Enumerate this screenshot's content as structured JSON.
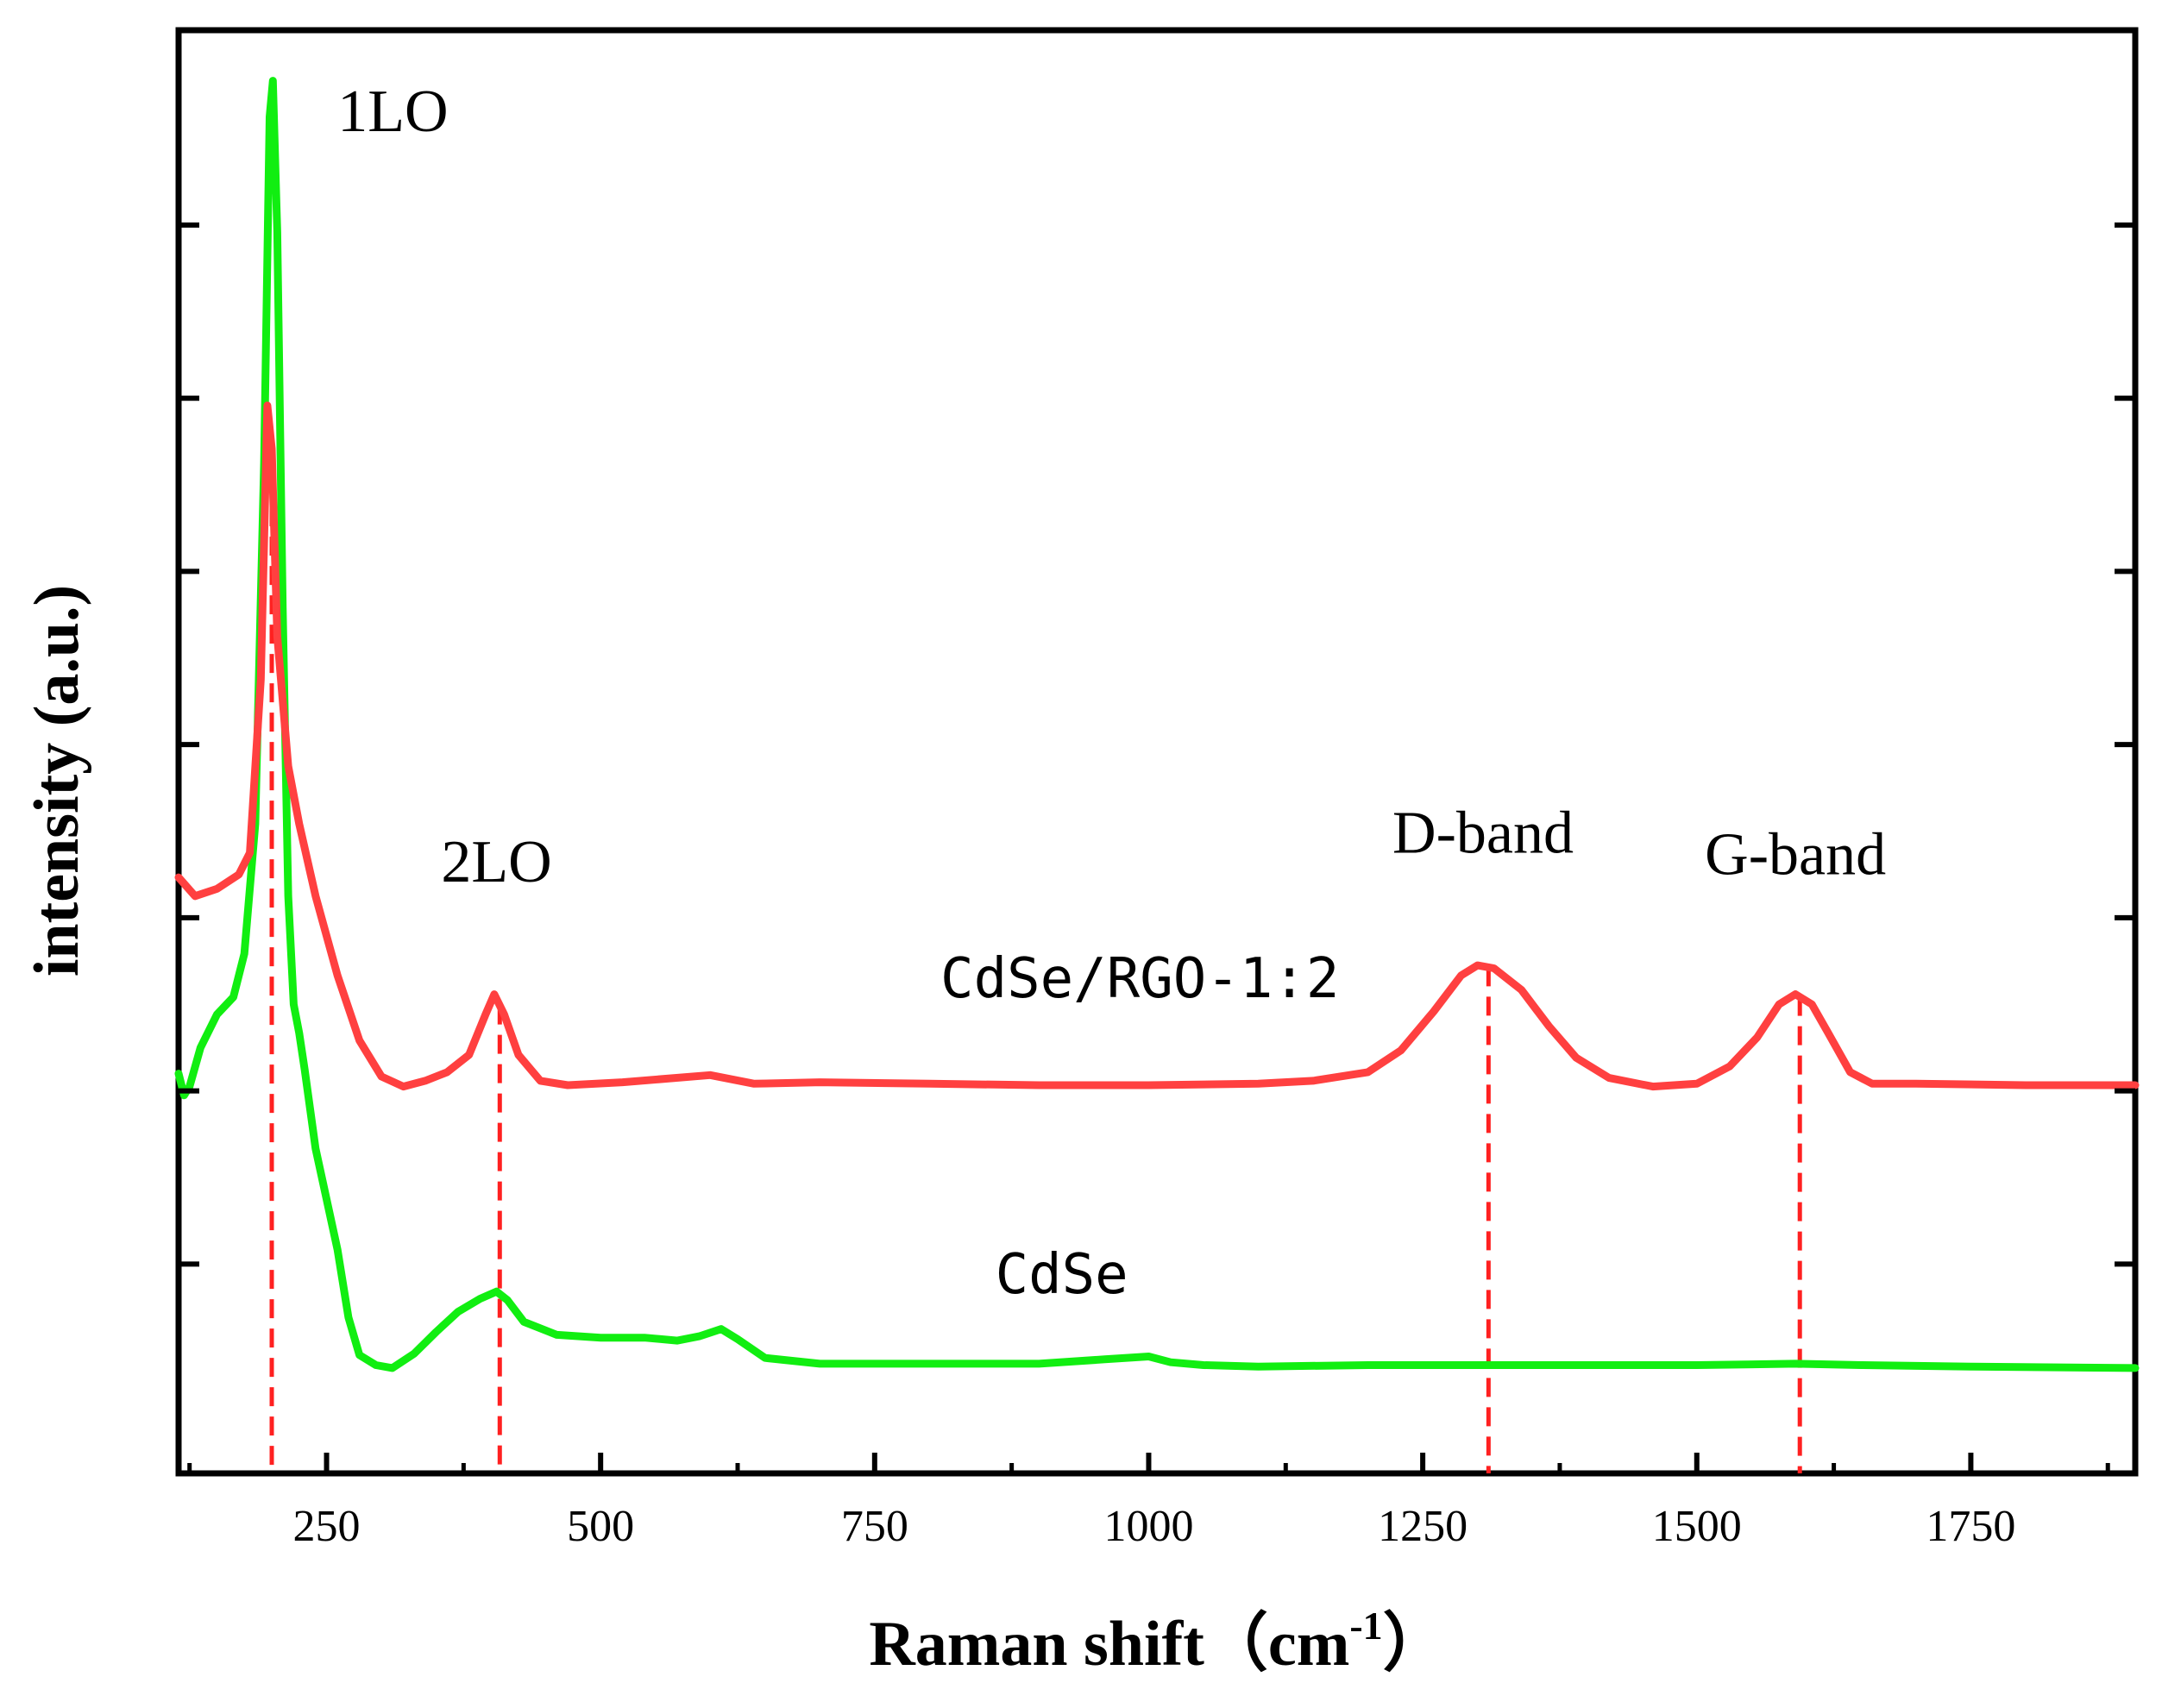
{
  "chart_data": {
    "type": "line",
    "title": "",
    "xlabel": "Raman shift（cm",
    "xlabel_superscript": "-1",
    "xlabel_close": "）",
    "ylabel": "intensity (a.u.)",
    "xlim": [
      115,
      1900
    ],
    "ylim": [
      0,
      100
    ],
    "x_ticks": [
      250,
      500,
      750,
      1000,
      1250,
      1500,
      1750
    ],
    "x_tick_labels": [
      "250",
      "500",
      "750",
      "1000",
      "1250",
      "1500",
      "1750"
    ],
    "y_ticks": [
      14.5,
      26.5,
      38.5,
      50.5,
      62.5,
      74.5,
      86.5
    ],
    "grid": false,
    "series": [
      {
        "name": "CdSe/RGO-1:2",
        "color": "#ff4040",
        "points": [
          [
            115,
            41.3
          ],
          [
            130,
            40.0
          ],
          [
            150,
            40.5
          ],
          [
            170,
            41.5
          ],
          [
            180,
            43
          ],
          [
            190,
            55
          ],
          [
            196,
            74
          ],
          [
            200,
            71
          ],
          [
            205,
            58
          ],
          [
            215,
            49
          ],
          [
            225,
            45
          ],
          [
            240,
            40
          ],
          [
            260,
            34.5
          ],
          [
            280,
            30
          ],
          [
            300,
            27.5
          ],
          [
            320,
            26.8
          ],
          [
            340,
            27.2
          ],
          [
            360,
            27.8
          ],
          [
            380,
            29
          ],
          [
            395,
            31.8
          ],
          [
            403,
            33.2
          ],
          [
            412,
            31.8
          ],
          [
            425,
            29
          ],
          [
            445,
            27.2
          ],
          [
            470,
            26.9
          ],
          [
            520,
            27.1
          ],
          [
            600,
            27.6
          ],
          [
            640,
            27.0
          ],
          [
            700,
            27.1
          ],
          [
            800,
            27.0
          ],
          [
            900,
            26.9
          ],
          [
            1000,
            26.9
          ],
          [
            1100,
            27.0
          ],
          [
            1150,
            27.2
          ],
          [
            1200,
            27.8
          ],
          [
            1230,
            29.3
          ],
          [
            1260,
            32.0
          ],
          [
            1285,
            34.5
          ],
          [
            1300,
            35.2
          ],
          [
            1315,
            35.0
          ],
          [
            1340,
            33.5
          ],
          [
            1365,
            31.0
          ],
          [
            1390,
            28.8
          ],
          [
            1420,
            27.4
          ],
          [
            1460,
            26.8
          ],
          [
            1500,
            27.0
          ],
          [
            1530,
            28.2
          ],
          [
            1555,
            30.2
          ],
          [
            1575,
            32.5
          ],
          [
            1590,
            33.2
          ],
          [
            1605,
            32.5
          ],
          [
            1620,
            30.5
          ],
          [
            1640,
            27.8
          ],
          [
            1660,
            27.0
          ],
          [
            1700,
            27.0
          ],
          [
            1800,
            26.9
          ],
          [
            1900,
            26.9
          ]
        ]
      },
      {
        "name": "CdSe",
        "color": "#11ee11",
        "points": [
          [
            115,
            27.7
          ],
          [
            120,
            26.2
          ],
          [
            125,
            26.8
          ],
          [
            135,
            29.5
          ],
          [
            150,
            31.8
          ],
          [
            165,
            33
          ],
          [
            175,
            36
          ],
          [
            185,
            45
          ],
          [
            193,
            70
          ],
          [
            198,
            94
          ],
          [
            201,
            96.5
          ],
          [
            205,
            86
          ],
          [
            210,
            60
          ],
          [
            215,
            40
          ],
          [
            220,
            32.5
          ],
          [
            225,
            30.5
          ],
          [
            230,
            28
          ],
          [
            240,
            22.5
          ],
          [
            250,
            19
          ],
          [
            260,
            15.5
          ],
          [
            270,
            10.8
          ],
          [
            280,
            8.2
          ],
          [
            295,
            7.5
          ],
          [
            310,
            7.3
          ],
          [
            330,
            8.3
          ],
          [
            350,
            9.8
          ],
          [
            370,
            11.2
          ],
          [
            390,
            12.1
          ],
          [
            405,
            12.6
          ],
          [
            415,
            12.0
          ],
          [
            430,
            10.5
          ],
          [
            460,
            9.6
          ],
          [
            500,
            9.4
          ],
          [
            540,
            9.4
          ],
          [
            570,
            9.2
          ],
          [
            590,
            9.5
          ],
          [
            610,
            10.0
          ],
          [
            625,
            9.3
          ],
          [
            650,
            8.0
          ],
          [
            700,
            7.6
          ],
          [
            800,
            7.6
          ],
          [
            900,
            7.6
          ],
          [
            960,
            7.9
          ],
          [
            1000,
            8.1
          ],
          [
            1020,
            7.7
          ],
          [
            1050,
            7.5
          ],
          [
            1100,
            7.4
          ],
          [
            1200,
            7.5
          ],
          [
            1300,
            7.5
          ],
          [
            1400,
            7.5
          ],
          [
            1500,
            7.5
          ],
          [
            1590,
            7.6
          ],
          [
            1650,
            7.5
          ],
          [
            1750,
            7.4
          ],
          [
            1900,
            7.3
          ]
        ]
      }
    ],
    "reference_lines": [
      {
        "x": 200,
        "color": "#ff2020"
      },
      {
        "x": 408,
        "color": "#ff2020"
      },
      {
        "x": 1310,
        "color": "#ff2020"
      },
      {
        "x": 1594,
        "color": "#ff2020"
      }
    ],
    "annotations": [
      {
        "text": "1LO",
        "x": 260,
        "y": 93
      },
      {
        "text": "2LO",
        "x": 405,
        "y": 41
      },
      {
        "text": "D-band",
        "x": 1305,
        "y": 43
      },
      {
        "text": "G-band",
        "x": 1590,
        "y": 41.5
      }
    ],
    "series_labels": [
      {
        "text": "CdSe/RGO-1:2",
        "x": 810,
        "y": 33
      },
      {
        "text": "CdSe",
        "x": 860,
        "y": 12.5
      }
    ]
  }
}
